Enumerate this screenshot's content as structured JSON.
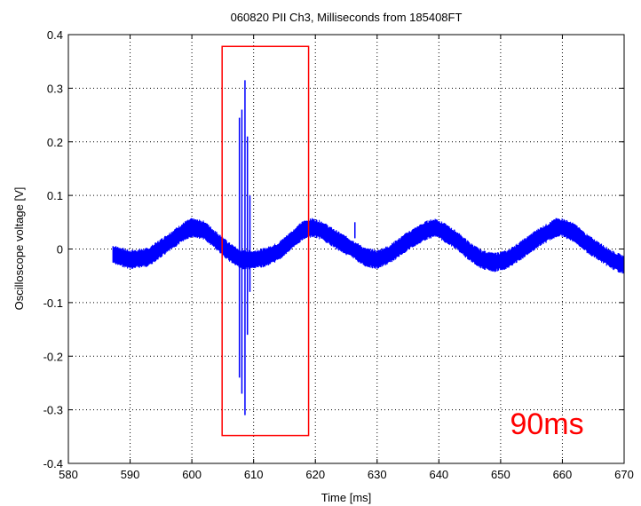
{
  "chart_data": {
    "type": "line",
    "title": "060820 PII Ch3, Milliseconds from 185408FT",
    "xlabel": "Time [ms]",
    "ylabel": "Oscilloscope voltage [V]",
    "xlim": [
      580,
      670
    ],
    "ylim": [
      -0.4,
      0.4
    ],
    "x_ticks": [
      580,
      590,
      600,
      610,
      620,
      630,
      640,
      650,
      660,
      670
    ],
    "y_ticks": [
      -0.4,
      -0.3,
      -0.2,
      -0.1,
      0,
      0.1,
      0.2,
      0.3,
      0.4
    ],
    "x_tick_labels": [
      "580",
      "590",
      "600",
      "610",
      "620",
      "630",
      "640",
      "650",
      "660",
      "670"
    ],
    "y_tick_labels": [
      "-0.4",
      "-0.3",
      "-0.2",
      "-0.1",
      "0",
      "0.1",
      "0.2",
      "0.3",
      "0.4"
    ],
    "grid": true,
    "series": [
      {
        "color": "#0000ff",
        "x_start": 587.2,
        "x_end": 670,
        "baseline": [
          [
            587.2,
            -0.01
          ],
          [
            590,
            -0.02
          ],
          [
            593,
            -0.015
          ],
          [
            596,
            0.01
          ],
          [
            599,
            0.035
          ],
          [
            600,
            0.04
          ],
          [
            602,
            0.035
          ],
          [
            604,
            0.015
          ],
          [
            606,
            -0.005
          ],
          [
            608,
            -0.02
          ],
          [
            610,
            -0.02
          ],
          [
            612,
            -0.015
          ],
          [
            614,
            -0.005
          ],
          [
            616,
            0.015
          ],
          [
            618,
            0.035
          ],
          [
            619.5,
            0.04
          ],
          [
            621,
            0.035
          ],
          [
            623,
            0.02
          ],
          [
            626,
            0.0
          ],
          [
            628,
            -0.015
          ],
          [
            630,
            -0.02
          ],
          [
            632,
            -0.01
          ],
          [
            635,
            0.015
          ],
          [
            638,
            0.035
          ],
          [
            639.5,
            0.04
          ],
          [
            641,
            0.03
          ],
          [
            643,
            0.015
          ],
          [
            645,
            -0.005
          ],
          [
            647,
            -0.02
          ],
          [
            649,
            -0.025
          ],
          [
            651,
            -0.02
          ],
          [
            653,
            -0.005
          ],
          [
            656,
            0.02
          ],
          [
            659,
            0.04
          ],
          [
            660,
            0.04
          ],
          [
            662,
            0.03
          ],
          [
            664,
            0.01
          ],
          [
            666,
            -0.005
          ],
          [
            668,
            -0.02
          ],
          [
            670,
            -0.03
          ]
        ],
        "band_halfwidth": 0.018,
        "spikes": [
          [
            607.7,
            -0.24,
            0.245
          ],
          [
            608.1,
            -0.27,
            0.26
          ],
          [
            608.6,
            -0.31,
            0.315
          ],
          [
            609.0,
            -0.16,
            0.21
          ],
          [
            609.4,
            -0.08,
            0.1
          ],
          [
            626.4,
            0.02,
            0.05
          ]
        ]
      }
    ],
    "annotations": [
      {
        "type": "rect",
        "color": "#ff0000",
        "x0": 604.9,
        "x1": 618.9,
        "y0": -0.348,
        "y1": 0.378
      },
      {
        "type": "text",
        "text": "90ms",
        "color": "#ff0000",
        "x": 657.5,
        "y": -0.345
      }
    ]
  }
}
